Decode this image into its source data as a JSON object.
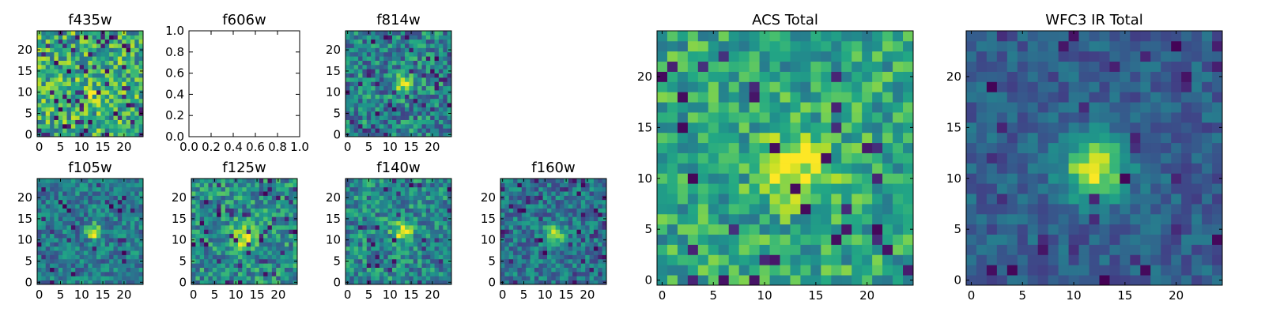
{
  "chart_data": {
    "type": "heatmap",
    "colormap": "viridis",
    "grid": false,
    "panels": [
      {
        "id": "f435w",
        "title": "f435w",
        "grid_size": 25,
        "seed": 11,
        "background": 0.62,
        "noise": 0.3,
        "dark_fraction": 0.1,
        "source": {
          "x": 12,
          "y": 10,
          "amplitude": 0.1,
          "sigma": 2.5
        },
        "xticks": [
          "0",
          "5",
          "10",
          "15",
          "20"
        ],
        "yticks": [
          "0",
          "5",
          "10",
          "15",
          "20"
        ]
      },
      {
        "id": "f606w",
        "title": "f606w",
        "empty": true,
        "xlim": [
          0.0,
          1.0
        ],
        "ylim": [
          0.0,
          1.0
        ],
        "xticks": [
          "0.0",
          "0.2",
          "0.4",
          "0.6",
          "0.8",
          "1.0"
        ],
        "yticks": [
          "0.0",
          "0.2",
          "0.4",
          "0.6",
          "0.8",
          "1.0"
        ]
      },
      {
        "id": "f814w",
        "title": "f814w",
        "grid_size": 25,
        "seed": 23,
        "background": 0.45,
        "noise": 0.26,
        "dark_fraction": 0.05,
        "source": {
          "x": 13,
          "y": 12,
          "amplitude": 0.55,
          "sigma": 1.4
        },
        "xticks": [
          "0",
          "5",
          "10",
          "15",
          "20"
        ],
        "yticks": [
          "0",
          "5",
          "10",
          "15",
          "20"
        ]
      },
      {
        "id": "f105w",
        "title": "f105w",
        "grid_size": 25,
        "seed": 31,
        "background": 0.42,
        "noise": 0.2,
        "dark_fraction": 0.05,
        "source": {
          "x": 13,
          "y": 12,
          "amplitude": 0.55,
          "sigma": 1.2
        },
        "xticks": [
          "0",
          "5",
          "10",
          "15",
          "20"
        ],
        "yticks": [
          "0",
          "5",
          "10",
          "15",
          "20"
        ]
      },
      {
        "id": "f125w",
        "title": "f125w",
        "grid_size": 25,
        "seed": 47,
        "background": 0.5,
        "noise": 0.24,
        "dark_fraction": 0.07,
        "source": {
          "x": 12,
          "y": 11,
          "amplitude": 0.42,
          "sigma": 2.2
        },
        "xticks": [
          "0",
          "5",
          "10",
          "15",
          "20"
        ],
        "yticks": [
          "0",
          "5",
          "10",
          "15",
          "20"
        ]
      },
      {
        "id": "f140w",
        "title": "f140w",
        "grid_size": 25,
        "seed": 53,
        "background": 0.47,
        "noise": 0.24,
        "dark_fraction": 0.05,
        "source": {
          "x": 13,
          "y": 12,
          "amplitude": 0.5,
          "sigma": 1.7
        },
        "xticks": [
          "0",
          "5",
          "10",
          "15",
          "20"
        ],
        "yticks": [
          "0",
          "5",
          "10",
          "15",
          "20"
        ]
      },
      {
        "id": "f160w",
        "title": "f160w",
        "grid_size": 25,
        "seed": 67,
        "background": 0.4,
        "noise": 0.2,
        "dark_fraction": 0.06,
        "source": {
          "x": 12,
          "y": 11,
          "amplitude": 0.55,
          "sigma": 1.5
        },
        "xticks": [
          "0",
          "5",
          "10",
          "15",
          "20"
        ],
        "yticks": [
          "0",
          "5",
          "10",
          "15",
          "20"
        ]
      },
      {
        "id": "acs-total",
        "title": "ACS Total",
        "grid_size": 25,
        "seed": 79,
        "background": 0.6,
        "noise": 0.22,
        "dark_fraction": 0.06,
        "source": {
          "x": 13,
          "y": 11,
          "amplitude": 0.35,
          "sigma": 2.3
        },
        "xticks": [
          "0",
          "5",
          "10",
          "15",
          "20"
        ],
        "yticks": [
          "0",
          "5",
          "10",
          "15",
          "20"
        ]
      },
      {
        "id": "wfc3-ir-total",
        "title": "WFC3 IR Total",
        "grid_size": 25,
        "seed": 97,
        "background": 0.3,
        "noise": 0.12,
        "dark_fraction": 0.05,
        "source": {
          "x": 12,
          "y": 11,
          "amplitude": 0.65,
          "sigma": 2.2
        },
        "xticks": [
          "0",
          "5",
          "10",
          "15",
          "20"
        ],
        "yticks": [
          "0",
          "5",
          "10",
          "15",
          "20"
        ]
      }
    ]
  }
}
